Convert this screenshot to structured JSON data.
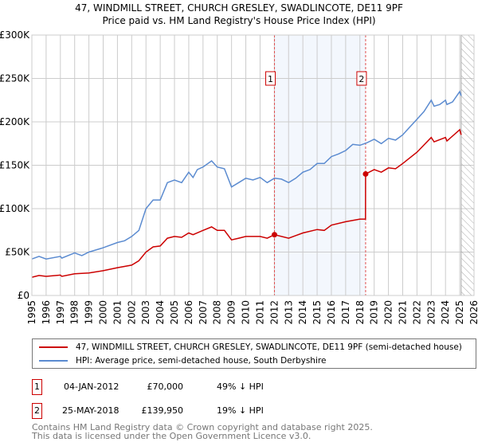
{
  "title": "47, WINDMILL STREET, CHURCH GRESLEY, SWADLINCOTE, DE11 9PF",
  "subtitle": "Price paid vs. HM Land Registry's House Price Index (HPI)",
  "chart_data": {
    "type": "line",
    "xlim": [
      1995,
      2026
    ],
    "ylim": [
      0,
      300000
    ],
    "yticks": [
      0,
      50000,
      100000,
      150000,
      200000,
      250000,
      300000
    ],
    "ytick_labels": [
      "£0",
      "£50K",
      "£100K",
      "£150K",
      "£200K",
      "£250K",
      "£300K"
    ],
    "xticks": [
      1995,
      1996,
      1997,
      1998,
      1999,
      2000,
      2001,
      2002,
      2003,
      2004,
      2005,
      2006,
      2007,
      2008,
      2009,
      2010,
      2011,
      2012,
      2013,
      2014,
      2015,
      2016,
      2017,
      2018,
      2019,
      2020,
      2021,
      2022,
      2023,
      2024,
      2025,
      2026
    ],
    "series": [
      {
        "name": "47, WINDMILL STREET, CHURCH GRESLEY, SWADLINCOTE, DE11 9PF (semi-detached house)",
        "color": "#cc0000",
        "x": [
          1995,
          1995.5,
          1996,
          1997,
          1997.1,
          1998,
          1999,
          2000,
          2001,
          2002,
          2002.5,
          2003,
          2003.5,
          2004,
          2004.5,
          2005,
          2005.5,
          2006,
          2006.3,
          2007,
          2007.6,
          2008,
          2008.5,
          2009,
          2009.5,
          2010,
          2011,
          2011.5,
          2012.01,
          2013,
          2013.5,
          2014,
          2015,
          2015.5,
          2016,
          2017,
          2018,
          2018.39,
          2018.4,
          2019,
          2019.5,
          2020,
          2020.5,
          2021,
          2022,
          2023,
          2023.2,
          2024,
          2024.1,
          2025,
          2025.1
        ],
        "y": [
          21000,
          23000,
          22000,
          23500,
          22000,
          25000,
          26000,
          28500,
          32000,
          35000,
          40000,
          50000,
          56000,
          57000,
          66000,
          68000,
          67000,
          72000,
          70000,
          75000,
          79000,
          75000,
          75000,
          64000,
          66000,
          68000,
          68000,
          66000,
          70000,
          66000,
          69000,
          72000,
          76000,
          75000,
          81000,
          85000,
          88000,
          88000,
          139950,
          145000,
          142000,
          147000,
          146000,
          152000,
          165000,
          182000,
          177000,
          182000,
          178000,
          191000,
          185000
        ]
      },
      {
        "name": "HPI: Average price, semi-detached house, South Derbyshire",
        "color": "#5b8bd0",
        "x": [
          1995,
          1995.5,
          1996,
          1997,
          1997.1,
          1998,
          1998.5,
          1999,
          2000,
          2001,
          2001.5,
          2002,
          2002.5,
          2003,
          2003.5,
          2004,
          2004.5,
          2005,
          2005.5,
          2006,
          2006.3,
          2006.6,
          2007,
          2007.6,
          2008,
          2008.5,
          2009,
          2009.5,
          2010,
          2010.5,
          2011,
          2011.5,
          2012,
          2012.5,
          2013,
          2013.5,
          2014,
          2014.5,
          2015,
          2015.5,
          2016,
          2016.5,
          2017,
          2017.5,
          2018,
          2018.5,
          2019,
          2019.5,
          2020,
          2020.5,
          2021,
          2021.5,
          2022,
          2022.5,
          2023,
          2023.2,
          2023.6,
          2024,
          2024.1,
          2024.5,
          2025,
          2025.1
        ],
        "y": [
          42000,
          45000,
          42000,
          45000,
          43000,
          49000,
          46000,
          50000,
          55000,
          61000,
          63000,
          68000,
          75000,
          100000,
          110000,
          110000,
          130000,
          133000,
          130000,
          142000,
          136000,
          145000,
          148000,
          155000,
          148000,
          146000,
          125000,
          130000,
          135000,
          133000,
          136000,
          130000,
          135000,
          134000,
          130000,
          135000,
          142000,
          145000,
          152000,
          152000,
          160000,
          163000,
          167000,
          174000,
          173000,
          176000,
          180000,
          175000,
          181000,
          179000,
          185000,
          194000,
          203000,
          212000,
          225000,
          218000,
          220000,
          225000,
          220000,
          223000,
          235000,
          230000
        ]
      }
    ],
    "annotations": [
      {
        "label": "1",
        "x": 2012.01,
        "y": 70000
      },
      {
        "label": "2",
        "x": 2018.4,
        "y": 139950
      }
    ],
    "shaded_range": [
      2012.01,
      2018.4
    ],
    "forecast_hatch_from": 2025.1
  },
  "legend": {
    "price_label": "47, WINDMILL STREET, CHURCH GRESLEY, SWADLINCOTE, DE11 9PF (semi-detached house)",
    "hpi_label": "HPI: Average price, semi-detached house, South Derbyshire"
  },
  "transactions": [
    {
      "num": "1",
      "date": "04-JAN-2012",
      "price": "£70,000",
      "hpi": "49% ↓ HPI"
    },
    {
      "num": "2",
      "date": "25-MAY-2018",
      "price": "£139,950",
      "hpi": "19% ↓ HPI"
    }
  ],
  "footer": {
    "line1": "Contains HM Land Registry data © Crown copyright and database right 2025.",
    "line2": "This data is licensed under the Open Government Licence v3.0."
  }
}
